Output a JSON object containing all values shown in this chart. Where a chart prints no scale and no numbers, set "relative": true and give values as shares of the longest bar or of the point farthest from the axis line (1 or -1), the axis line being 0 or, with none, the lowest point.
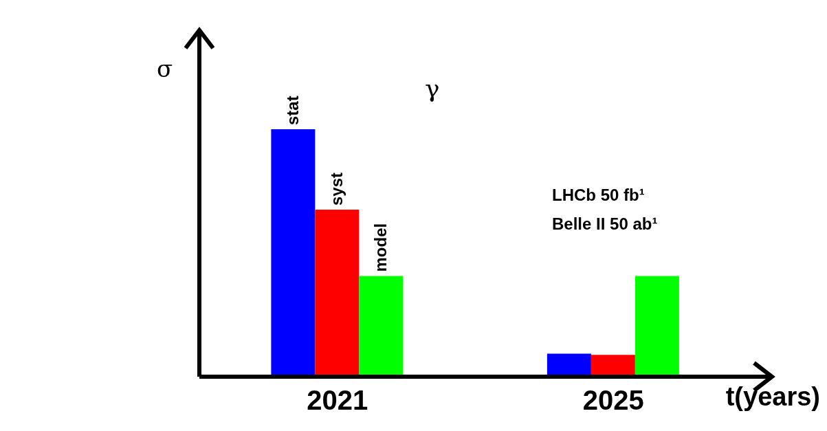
{
  "chart_data": {
    "type": "bar",
    "relative": true,
    "ylabel": "σ",
    "xlabel": "t(years)",
    "categories": [
      "2021",
      "2025"
    ],
    "legend": false,
    "series": [
      {
        "name": "stat",
        "color": "#0000ff",
        "values": [
          1,
          0.093
        ]
      },
      {
        "name": "syst",
        "color": "#ff0000",
        "values": [
          0.675,
          0.088
        ]
      },
      {
        "name": "model",
        "color": "#00ff00",
        "values": [
          0.407,
          0.407
        ]
      }
    ],
    "annotations": [
      "γ",
      "LHCb 50 fb¹",
      "Belle II 50 ab¹"
    ]
  }
}
